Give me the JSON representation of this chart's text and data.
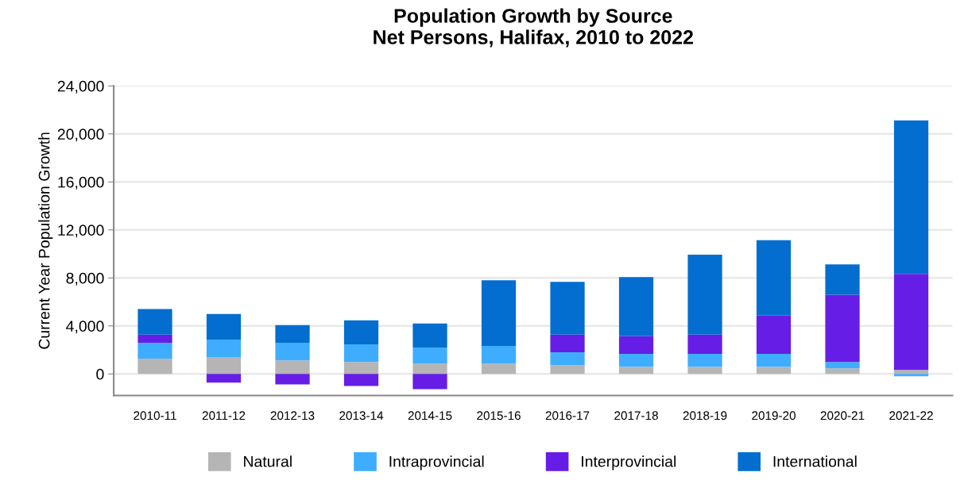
{
  "chart_data": {
    "type": "bar",
    "title": "Population Growth by Source\nNet Persons, Halifax, 2010 to 2022",
    "ylabel": "Current Year Population Growth",
    "categories": [
      "2010-11",
      "2011-12",
      "2012-13",
      "2013-14",
      "2014-15",
      "2015-16",
      "2016-17",
      "2017-18",
      "2018-19",
      "2019-20",
      "2020-21",
      "2021-22"
    ],
    "stacked": true,
    "series": [
      {
        "name": "Natural",
        "color": "#b5b5b5",
        "values": [
          1270,
          1400,
          1130,
          1000,
          870,
          870,
          730,
          600,
          600,
          600,
          470,
          330
        ]
      },
      {
        "name": "Intraprovincial",
        "color": "#3fadff",
        "values": [
          1330,
          1470,
          1470,
          1470,
          1330,
          1470,
          1070,
          1070,
          1070,
          1070,
          530,
          -200
        ]
      },
      {
        "name": "Interprovincial",
        "color": "#661ee6",
        "values": [
          670,
          -730,
          -870,
          -1000,
          -1270,
          0,
          1470,
          1470,
          1600,
          3200,
          5600,
          8000
        ]
      },
      {
        "name": "International",
        "color": "#036ecf",
        "values": [
          2130,
          2130,
          1470,
          2000,
          2000,
          5470,
          4400,
          4930,
          6670,
          6270,
          2530,
          12800
        ]
      }
    ],
    "ylim": [
      -1800,
      24000
    ],
    "yticks": [
      {
        "value": 0,
        "label": "0"
      },
      {
        "value": 4000,
        "label": "4,000"
      },
      {
        "value": 8000,
        "label": "8,000"
      },
      {
        "value": 12000,
        "label": "12,000"
      },
      {
        "value": 16000,
        "label": "16,000"
      },
      {
        "value": 20000,
        "label": "20,000"
      },
      {
        "value": 24000,
        "label": "24,000"
      }
    ],
    "grid": "y",
    "legend": "bottom"
  }
}
